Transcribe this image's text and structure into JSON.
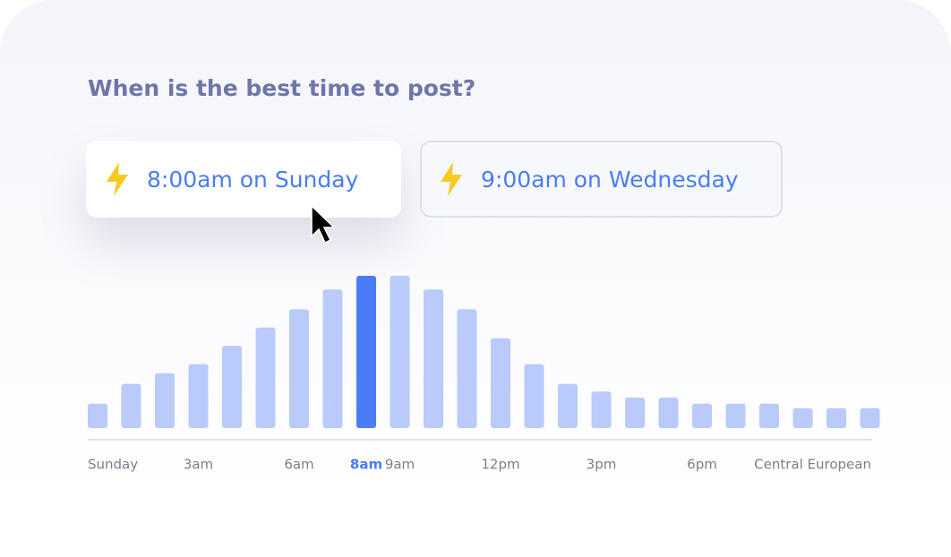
{
  "chart_data": {
    "type": "bar",
    "title": "When is the best time to post?",
    "buttons": [
      "8:00am on Sunday",
      "9:00am on Wednesday"
    ],
    "day_label": "Sunday",
    "timezone_label": "Central European",
    "categories": [
      null,
      null,
      null,
      "3am",
      null,
      null,
      "6am",
      null,
      "8am",
      "9am",
      null,
      null,
      "12pm",
      null,
      null,
      "3pm",
      null,
      null,
      "6pm",
      null,
      null,
      null,
      null,
      null
    ],
    "values": [
      16,
      29,
      36,
      42,
      54,
      66,
      78,
      91,
      100,
      100,
      91,
      78,
      59,
      42,
      29,
      24,
      20,
      20,
      16,
      16,
      16,
      13,
      13,
      13
    ],
    "color": "#b9cafb",
    "highlight": 8,
    "highlight_color": "#4a7cf6"
  }
}
